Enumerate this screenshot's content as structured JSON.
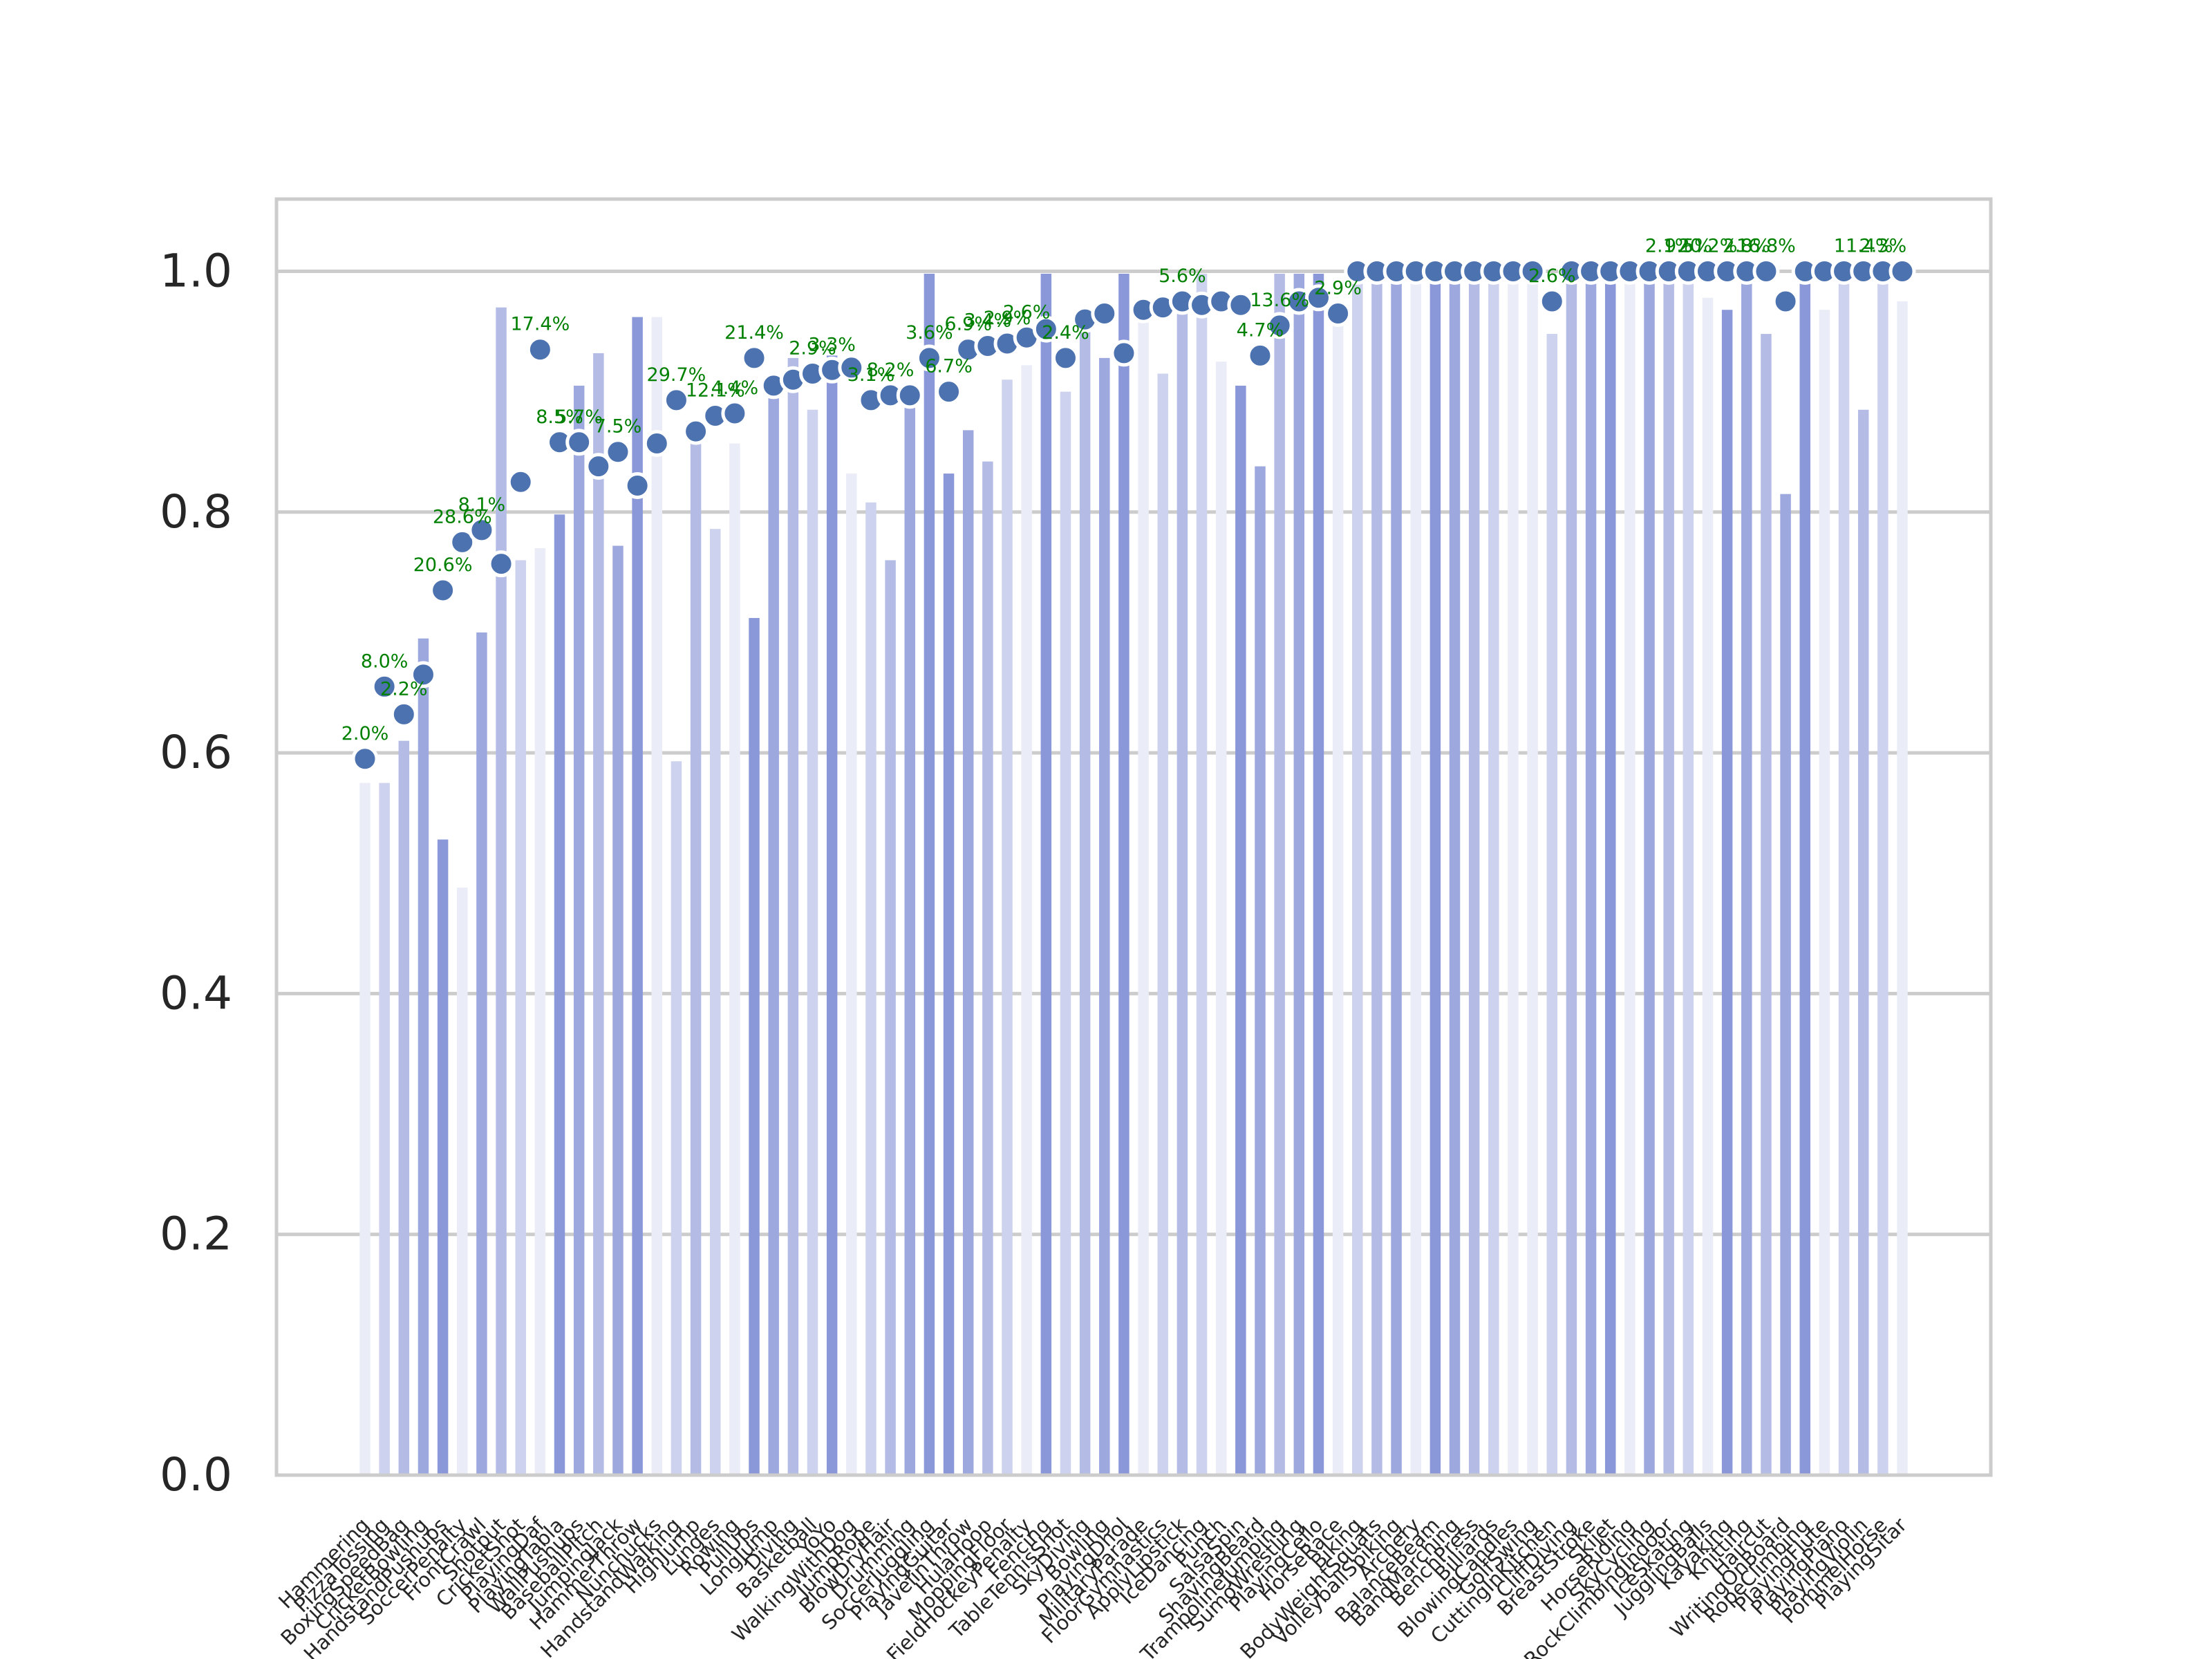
{
  "chart_data": {
    "type": "bar",
    "title": "",
    "xlabel": "",
    "ylabel": "",
    "ylim": [
      0,
      1.06
    ],
    "yticks": [
      "0.0",
      "0.2",
      "0.4",
      "0.6",
      "0.8",
      "1.0"
    ],
    "grid": "y",
    "legend": "none",
    "categories": [
      "Hammering",
      "PizzaTossing",
      "BoxingSpeedBag",
      "CricketBowling",
      "HandstandPushups",
      "SoccerPenalty",
      "FrontCrawl",
      "Shotput",
      "CricketShot",
      "PlayingDaf",
      "PlayingTabla",
      "WallPushups",
      "BaseballPitch",
      "JumpingJack",
      "HammerThrow",
      "Nunchucks",
      "HandstandWalking",
      "HighJump",
      "Lunges",
      "Rowing",
      "PullUps",
      "LongJump",
      "Diving",
      "Basketball",
      "YoYo",
      "WalkingWithDog",
      "JumpRope",
      "BlowDryHair",
      "Drumming",
      "SoccerJuggling",
      "PlayingGuitar",
      "JavelinThrow",
      "HulaHoop",
      "MoppingFloor",
      "FieldHockeyPenalty",
      "Fencing",
      "TableTennisShot",
      "SkyDiving",
      "Bowling",
      "PlayingDhol",
      "MilitaryParade",
      "FloorGymnastics",
      "ApplyLipstick",
      "IceDancing",
      "Punch",
      "SalsaSpin",
      "ShavingBeard",
      "TrampolineJumping",
      "SumoWrestling",
      "PlayingCello",
      "HorseRace",
      "Biking",
      "BodyWeightSquats",
      "VolleyballSpiking",
      "Archery",
      "BalanceBeam",
      "BandMarching",
      "BenchPress",
      "Billiards",
      "BlowingCandles",
      "GolfSwing",
      "CuttingInKitchen",
      "CliffDiving",
      "BreastStroke",
      "Skijet",
      "HorseRiding",
      "SkyCycling",
      "RockClimbingIndoor",
      "IceSkating",
      "JugglingBalls",
      "Kayaking",
      "Knitting",
      "Haircut",
      "WritingOnBoard",
      "RopeClimbing",
      "PlayingFlute",
      "PlayingPiano",
      "PlayingViolin",
      "PommelHorse",
      "PlayingSitar"
    ],
    "series": [
      {
        "values": [
          0.595,
          0.655,
          0.632,
          0.665,
          0.735,
          0.775,
          0.785,
          0.757,
          0.825,
          0.935,
          0.858,
          0.858,
          0.838,
          0.85,
          0.822,
          0.857,
          0.893,
          0.867,
          0.88,
          0.882,
          0.928,
          0.905,
          0.91,
          0.915,
          0.918,
          0.92,
          0.893,
          0.897,
          0.897,
          0.928,
          0.9,
          0.935,
          0.938,
          0.94,
          0.945,
          0.952,
          0.928,
          0.96,
          0.965,
          0.932,
          0.968,
          0.97,
          0.975,
          0.972,
          0.975,
          0.972,
          0.93,
          0.955,
          0.975,
          0.978,
          0.965,
          1.0,
          1.0,
          1.0,
          1.0,
          1.0,
          1.0,
          1.0,
          1.0,
          1.0,
          1.0,
          0.975,
          1.0,
          1.0,
          1.0,
          1.0,
          1.0,
          1.0,
          1.0,
          1.0,
          1.0,
          1.0,
          1.0,
          0.975,
          1.0,
          1.0,
          1.0,
          1.0,
          1.0,
          1.0
        ]
      }
    ],
    "bar_heights": [
      0.575,
      0.575,
      0.61,
      0.695,
      0.528,
      0.488,
      0.7,
      0.97,
      0.76,
      0.77,
      0.798,
      0.905,
      0.932,
      0.772,
      0.962,
      0.962,
      0.593,
      0.865,
      0.786,
      0.857,
      0.712,
      0.91,
      0.928,
      0.885,
      0.93,
      0.832,
      0.808,
      0.76,
      0.895,
      0.998,
      0.832,
      0.868,
      0.842,
      0.91,
      0.922,
      0.998,
      0.9,
      0.965,
      0.928,
      0.998,
      0.968,
      0.915,
      0.975,
      0.998,
      0.925,
      0.905,
      0.838,
      0.998,
      0.998,
      0.998,
      0.968,
      0.998,
      0.998,
      0.998,
      0.998,
      0.998,
      0.998,
      0.998,
      0.998,
      0.998,
      0.998,
      0.948,
      0.998,
      0.998,
      0.998,
      0.998,
      0.998,
      0.998,
      0.998,
      0.978,
      0.968,
      0.998,
      0.948,
      0.815,
      0.998,
      0.968,
      0.998,
      0.885,
      0.998,
      0.975
    ],
    "annotations": [
      {
        "index": 0,
        "label": "2.0%"
      },
      {
        "index": 1,
        "label": "8.0%"
      },
      {
        "index": 2,
        "label": "2.2%"
      },
      {
        "index": 4,
        "label": "20.6%"
      },
      {
        "index": 5,
        "label": "28.6%"
      },
      {
        "index": 6,
        "label": "8.1%"
      },
      {
        "index": 9,
        "label": "17.4%"
      },
      {
        "index": 10,
        "label": "8.5%"
      },
      {
        "index": 11,
        "label": "5.7%"
      },
      {
        "index": 13,
        "label": "7.5%"
      },
      {
        "index": 16,
        "label": "29.7%"
      },
      {
        "index": 18,
        "label": "12.1%"
      },
      {
        "index": 19,
        "label": "4.4%"
      },
      {
        "index": 20,
        "label": "21.4%"
      },
      {
        "index": 23,
        "label": "2.9%"
      },
      {
        "index": 24,
        "label": "3.3%"
      },
      {
        "index": 26,
        "label": "3.1%"
      },
      {
        "index": 27,
        "label": "8.2%"
      },
      {
        "index": 29,
        "label": "3.6%"
      },
      {
        "index": 30,
        "label": "6.7%"
      },
      {
        "index": 31,
        "label": "6.9%"
      },
      {
        "index": 32,
        "label": "3.4%"
      },
      {
        "index": 33,
        "label": "2.9%"
      },
      {
        "index": 34,
        "label": "2.6%"
      },
      {
        "index": 36,
        "label": "2.4%"
      },
      {
        "index": 42,
        "label": "5.6%"
      },
      {
        "index": 46,
        "label": "4.7%"
      },
      {
        "index": 47,
        "label": "13.6%"
      },
      {
        "index": 50,
        "label": "2.9%"
      },
      {
        "index": 61,
        "label": "2.6%"
      },
      {
        "index": 67,
        "label": "2.1%"
      },
      {
        "index": 68,
        "label": "9.5%"
      },
      {
        "index": 69,
        "label": "20.2%"
      },
      {
        "index": 71,
        "label": "2.8%"
      },
      {
        "index": 72,
        "label": "16.8%"
      },
      {
        "index": 77,
        "label": "11.4%"
      },
      {
        "index": 78,
        "label": "2.3%"
      }
    ]
  }
}
